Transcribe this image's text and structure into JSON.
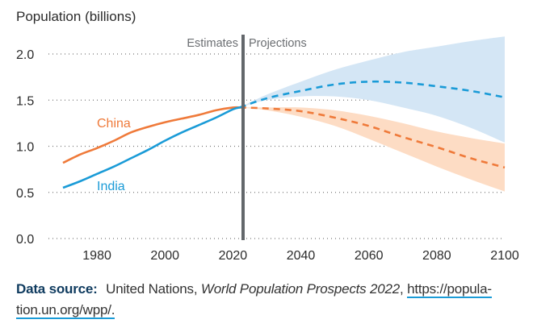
{
  "chart_data": {
    "type": "line",
    "title": "",
    "ylabel": "Population (billions)",
    "xlabel": "",
    "xlim": [
      1970,
      2100
    ],
    "ylim": [
      0,
      2.0
    ],
    "x_ticks": [
      1980,
      2000,
      2020,
      2040,
      2060,
      2080,
      2100
    ],
    "x_tick_labels": [
      "1980",
      "2000",
      "2020",
      "2040",
      "2060",
      "2080",
      "2100"
    ],
    "y_ticks": [
      0,
      0.5,
      1.0,
      1.5,
      2.0
    ],
    "y_tick_labels": [
      "0.0",
      "0.5",
      "1.0",
      "1.5",
      "2.0"
    ],
    "grid": "horizontal dotted",
    "divider": {
      "x": 2022,
      "left_label": "Estimates",
      "right_label": "Projections"
    },
    "series": [
      {
        "name": "China",
        "color": "#ef7a3a",
        "estimates": {
          "x": [
            1970,
            1975,
            1980,
            1985,
            1990,
            1995,
            2000,
            2005,
            2010,
            2015,
            2020,
            2022
          ],
          "y": [
            0.82,
            0.91,
            0.98,
            1.06,
            1.15,
            1.21,
            1.26,
            1.3,
            1.34,
            1.39,
            1.42,
            1.42
          ]
        },
        "projection": {
          "x": [
            2022,
            2030,
            2040,
            2050,
            2060,
            2070,
            2080,
            2090,
            2100
          ],
          "median": [
            1.42,
            1.41,
            1.38,
            1.31,
            1.22,
            1.1,
            0.99,
            0.87,
            0.77
          ],
          "lower": [
            1.42,
            1.39,
            1.32,
            1.22,
            1.08,
            0.93,
            0.78,
            0.64,
            0.51
          ],
          "upper": [
            1.42,
            1.42,
            1.42,
            1.39,
            1.33,
            1.25,
            1.16,
            1.09,
            1.03
          ]
        },
        "band_color": "#fddcc4"
      },
      {
        "name": "India",
        "color": "#1a9bd7",
        "estimates": {
          "x": [
            1970,
            1975,
            1980,
            1985,
            1990,
            1995,
            2000,
            2005,
            2010,
            2015,
            2020,
            2022
          ],
          "y": [
            0.55,
            0.62,
            0.7,
            0.78,
            0.87,
            0.96,
            1.06,
            1.15,
            1.23,
            1.31,
            1.4,
            1.42
          ]
        },
        "projection": {
          "x": [
            2022,
            2030,
            2040,
            2050,
            2060,
            2070,
            2080,
            2090,
            2100
          ],
          "median": [
            1.42,
            1.52,
            1.6,
            1.67,
            1.7,
            1.69,
            1.65,
            1.6,
            1.53
          ],
          "lower": [
            1.42,
            1.5,
            1.54,
            1.54,
            1.5,
            1.42,
            1.33,
            1.2,
            1.04
          ],
          "upper": [
            1.42,
            1.56,
            1.7,
            1.83,
            1.93,
            2.02,
            2.08,
            2.14,
            2.19
          ]
        },
        "band_color": "#d4e6f5"
      }
    ]
  },
  "caption": {
    "lead": "Data source:",
    "text_plain": "United Nations,",
    "text_italic": "World Population Prospects 2022",
    "separator": ",",
    "link": "https://popula-tion.un.org/wpp/."
  }
}
